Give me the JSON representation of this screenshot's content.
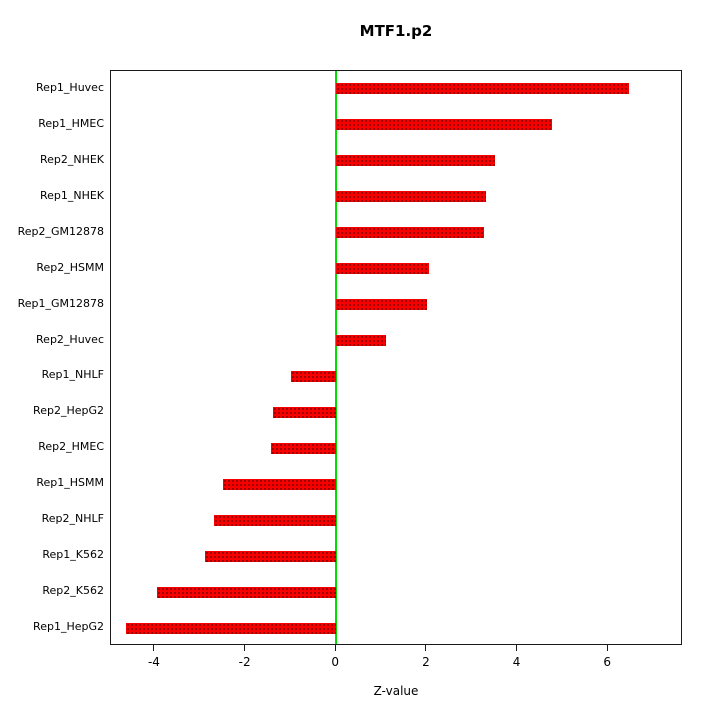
{
  "chart_data": {
    "type": "bar",
    "orientation": "horizontal",
    "title": "MTF1.p2",
    "xlabel": "Z-value",
    "categories": [
      "Rep1_Huvec",
      "Rep1_HMEC",
      "Rep2_NHEK",
      "Rep1_NHEK",
      "Rep2_GM12878",
      "Rep2_HSMM",
      "Rep1_GM12878",
      "Rep2_Huvec",
      "Rep1_NHLF",
      "Rep2_HepG2",
      "Rep2_HMEC",
      "Rep1_HSMM",
      "Rep2_NHLF",
      "Rep1_K562",
      "Rep2_K562",
      "Rep1_HepG2"
    ],
    "values": [
      6.45,
      4.75,
      3.5,
      3.3,
      3.25,
      2.05,
      2.0,
      1.1,
      -1.0,
      -1.4,
      -1.45,
      -2.5,
      -2.7,
      -2.9,
      -3.95,
      -4.65
    ],
    "xlim": [
      -4.97,
      7.65
    ],
    "xticks": [
      -4,
      -2,
      0,
      2,
      4,
      6
    ],
    "grid": false,
    "legend": false,
    "bar_color": "#f80000",
    "zero_line_color": "#00dd00",
    "border_color": "#1a1a1a"
  }
}
